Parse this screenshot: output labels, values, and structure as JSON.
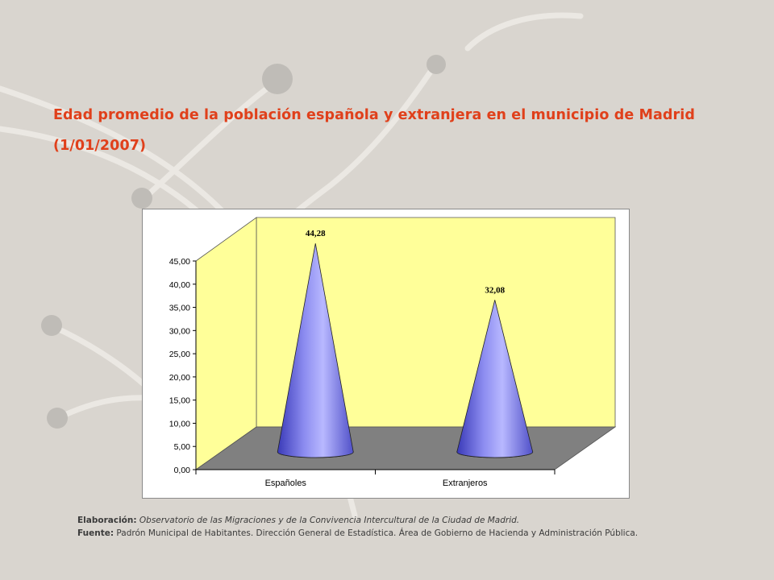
{
  "title": {
    "line1": "Edad promedio de la población española y extranjera en el municipio de Madrid",
    "line2": "(1/01/2007)"
  },
  "colors": {
    "title": "#e0401b",
    "wall": "#ffff99",
    "floor": "#808080",
    "cone": "#8c8cf0",
    "background": "#d9d5cf"
  },
  "chart_data": {
    "type": "bar",
    "shape": "cone-3d",
    "categories": [
      "Españoles",
      "Extranjeros"
    ],
    "values": [
      44.28,
      32.08
    ],
    "data_labels": [
      "44,28",
      "32,08"
    ],
    "ylim": [
      0,
      45
    ],
    "y_ticks": [
      "0,00",
      "5,00",
      "10,00",
      "15,00",
      "20,00",
      "25,00",
      "30,00",
      "35,00",
      "40,00",
      "45,00"
    ],
    "grid": false,
    "legend": "none"
  },
  "credits": {
    "elab_label": "Elaboración:",
    "elab_text": "Observatorio de las Migraciones y de la Convivencia Intercultural de la Ciudad de Madrid.",
    "source_label": "Fuente:",
    "source_text": "Padrón Municipal de Habitantes. Dirección General de Estadística. Área de Gobierno de Hacienda y Administración Pública."
  }
}
